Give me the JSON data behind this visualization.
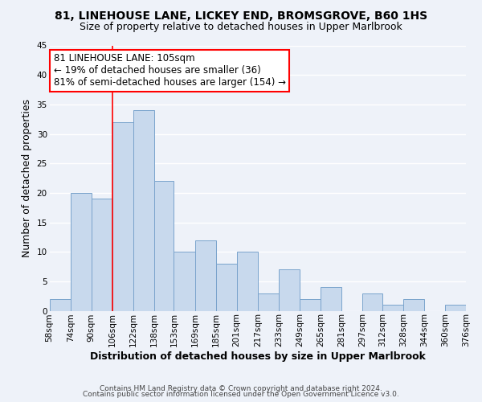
{
  "title": "81, LINEHOUSE LANE, LICKEY END, BROMSGROVE, B60 1HS",
  "subtitle": "Size of property relative to detached houses in Upper Marlbrook",
  "xlabel": "Distribution of detached houses by size in Upper Marlbrook",
  "ylabel": "Number of detached properties",
  "bar_color": "#c8d9ed",
  "bar_edge_color": "#7aa3cc",
  "bins": [
    58,
    74,
    90,
    106,
    122,
    138,
    153,
    169,
    185,
    201,
    217,
    233,
    249,
    265,
    281,
    297,
    312,
    328,
    344,
    360,
    376
  ],
  "counts": [
    2,
    20,
    19,
    32,
    34,
    22,
    10,
    12,
    8,
    10,
    3,
    7,
    2,
    4,
    0,
    3,
    1,
    2,
    0,
    1
  ],
  "tick_labels": [
    "58sqm",
    "74sqm",
    "90sqm",
    "106sqm",
    "122sqm",
    "138sqm",
    "153sqm",
    "169sqm",
    "185sqm",
    "201sqm",
    "217sqm",
    "233sqm",
    "249sqm",
    "265sqm",
    "281sqm",
    "297sqm",
    "312sqm",
    "328sqm",
    "344sqm",
    "360sqm",
    "376sqm"
  ],
  "ylim": [
    0,
    45
  ],
  "yticks": [
    0,
    5,
    10,
    15,
    20,
    25,
    30,
    35,
    40,
    45
  ],
  "property_line_x": 106,
  "annotation_line1": "81 LINEHOUSE LANE: 105sqm",
  "annotation_line2": "← 19% of detached houses are smaller (36)",
  "annotation_line3": "81% of semi-detached houses are larger (154) →",
  "annotation_box_color": "white",
  "annotation_box_edge_color": "red",
  "vline_color": "red",
  "footer1": "Contains HM Land Registry data © Crown copyright and database right 2024.",
  "footer2": "Contains public sector information licensed under the Open Government Licence v3.0.",
  "background_color": "#eef2f9",
  "grid_color": "white",
  "title_fontsize": 10,
  "subtitle_fontsize": 9,
  "label_fontsize": 9,
  "tick_fontsize": 7.5,
  "annotation_fontsize": 8.5,
  "footer_fontsize": 6.5
}
